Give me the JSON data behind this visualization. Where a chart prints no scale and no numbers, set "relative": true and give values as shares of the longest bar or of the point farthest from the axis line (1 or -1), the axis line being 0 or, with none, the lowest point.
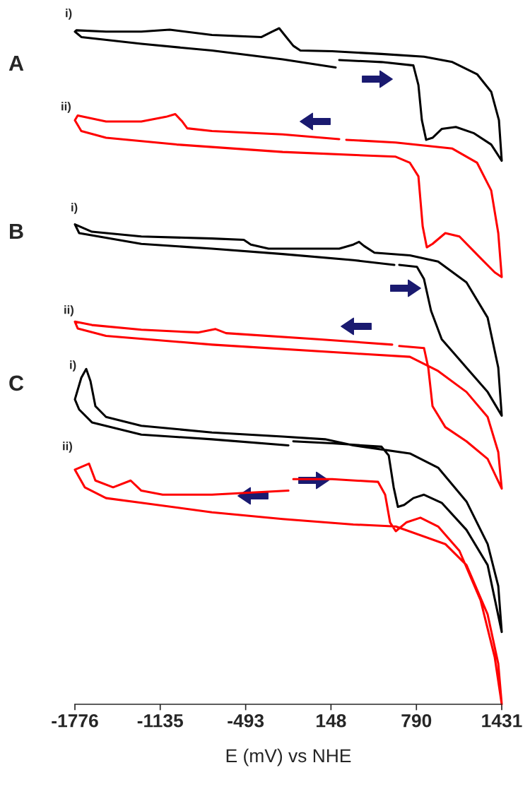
{
  "chart_data": {
    "type": "line",
    "relative": true,
    "xlabel": "E (mV) vs NHE",
    "xlim": [
      -1776,
      1431
    ],
    "xticks": [
      -1776,
      -1135,
      -493,
      148,
      790,
      1431
    ],
    "grid": false,
    "legend": false,
    "marker": "none",
    "line_style": "solid",
    "annotations": [
      "A",
      "i)",
      "ii)",
      "B",
      "i)",
      "ii)",
      "C",
      "i)",
      "ii)"
    ],
    "series": [
      {
        "color": "#000000",
        "x": [
          210,
          528,
          767,
          805,
          831,
          863,
          911,
          980,
          1086,
          1219,
          1352,
          1431,
          1410,
          1352,
          1246,
          1060,
          847,
          528,
          157,
          -82,
          -135,
          -188,
          -241,
          -295,
          -374,
          -746,
          -1064,
          -1277,
          -1542,
          -1765,
          -1776,
          -1728,
          -1277,
          -746,
          -215,
          183
        ],
        "values": [
          0.953,
          0.95,
          0.945,
          0.916,
          0.864,
          0.835,
          0.838,
          0.851,
          0.854,
          0.845,
          0.828,
          0.804,
          0.864,
          0.906,
          0.932,
          0.95,
          0.958,
          0.962,
          0.966,
          0.967,
          0.974,
          0.987,
          1.0,
          0.995,
          0.987,
          0.99,
          0.998,
          0.995,
          0.995,
          0.997,
          0.995,
          0.987,
          0.977,
          0.967,
          0.954,
          0.942
        ]
      },
      {
        "color": "#ff0000",
        "x": [
          263,
          634,
          1060,
          1246,
          1352,
          1405,
          1431,
          1378,
          1272,
          1113,
          1007,
          911,
          868,
          837,
          805,
          741,
          634,
          -215,
          -1011,
          -1542,
          -1728,
          -1776,
          -1755,
          -1542,
          -1277,
          -1091,
          -1022,
          -969,
          -932,
          -746,
          -215,
          210
        ],
        "values": [
          0.835,
          0.831,
          0.822,
          0.801,
          0.76,
          0.697,
          0.632,
          0.639,
          0.66,
          0.692,
          0.697,
          0.681,
          0.676,
          0.707,
          0.781,
          0.801,
          0.81,
          0.817,
          0.828,
          0.838,
          0.848,
          0.864,
          0.871,
          0.862,
          0.862,
          0.869,
          0.873,
          0.862,
          0.852,
          0.848,
          0.843,
          0.836
        ]
      },
      {
        "color": "#000000",
        "x": [
          661,
          794,
          847,
          900,
          980,
          1166,
          1325,
          1431,
          1405,
          1325,
          1166,
          953,
          741,
          475,
          396,
          359,
          316,
          210,
          -321,
          -454,
          -507,
          -746,
          -1277,
          -1648,
          -1776,
          -1744,
          -1277,
          -746,
          -215,
          316,
          624
        ],
        "values": [
          0.65,
          0.647,
          0.629,
          0.582,
          0.54,
          0.498,
          0.462,
          0.427,
          0.498,
          0.572,
          0.624,
          0.655,
          0.664,
          0.668,
          0.678,
          0.684,
          0.68,
          0.674,
          0.674,
          0.68,
          0.687,
          0.689,
          0.692,
          0.699,
          0.71,
          0.697,
          0.681,
          0.674,
          0.666,
          0.657,
          0.65
        ]
      },
      {
        "color": "#ff0000",
        "x": [
          661,
          847,
          879,
          911,
          1007,
          1166,
          1325,
          1431,
          1405,
          1325,
          1166,
          953,
          741,
          316,
          -746,
          -1542,
          -1755,
          -1776,
          -1648,
          -1277,
          -852,
          -719,
          -640,
          51,
          608
        ],
        "values": [
          0.53,
          0.527,
          0.498,
          0.441,
          0.41,
          0.389,
          0.363,
          0.319,
          0.373,
          0.425,
          0.462,
          0.493,
          0.514,
          0.519,
          0.532,
          0.545,
          0.556,
          0.566,
          0.561,
          0.554,
          0.55,
          0.555,
          0.549,
          0.54,
          0.532
        ]
      },
      {
        "color": "#000000",
        "x": [
          -135,
          157,
          528,
          582,
          619,
          651,
          698,
          767,
          847,
          980,
          1166,
          1325,
          1431,
          1405,
          1325,
          1166,
          953,
          741,
          316,
          104,
          -215,
          -746,
          -1277,
          -1542,
          -1622,
          -1659,
          -1691,
          -1728,
          -1776,
          -1744,
          -1648,
          -1277,
          -746,
          -172
        ],
        "values": [
          0.389,
          0.386,
          0.381,
          0.368,
          0.321,
          0.292,
          0.295,
          0.305,
          0.31,
          0.298,
          0.258,
          0.206,
          0.107,
          0.175,
          0.237,
          0.3,
          0.35,
          0.371,
          0.383,
          0.392,
          0.396,
          0.402,
          0.412,
          0.425,
          0.441,
          0.478,
          0.496,
          0.483,
          0.451,
          0.436,
          0.417,
          0.399,
          0.392,
          0.383
        ]
      },
      {
        "color": "#ff0000",
        "x": [
          -135,
          157,
          502,
          555,
          592,
          635,
          714,
          820,
          953,
          1113,
          1272,
          1378,
          1431,
          1405,
          1325,
          1166,
          1007,
          634,
          316,
          -215,
          -746,
          -1277,
          -1542,
          -1702,
          -1776,
          -1670,
          -1622,
          -1489,
          -1357,
          -1277,
          -1117,
          -746,
          -172
        ],
        "values": [
          0.333,
          0.333,
          0.329,
          0.31,
          0.269,
          0.256,
          0.269,
          0.276,
          0.263,
          0.227,
          0.154,
          0.07,
          0,
          0.06,
          0.133,
          0.206,
          0.237,
          0.263,
          0.266,
          0.274,
          0.284,
          0.298,
          0.305,
          0.321,
          0.347,
          0.356,
          0.331,
          0.321,
          0.331,
          0.316,
          0.31,
          0.31,
          0.316
        ]
      }
    ]
  }
}
